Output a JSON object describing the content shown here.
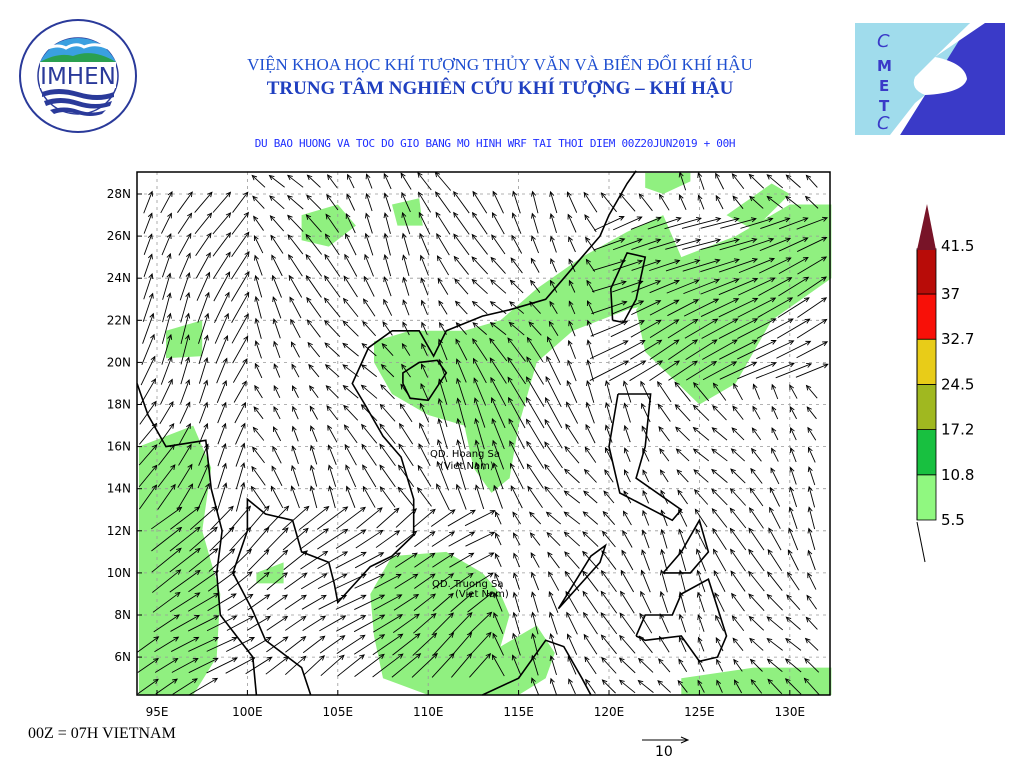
{
  "header": {
    "title_line1": "VIỆN KHOA HỌC KHÍ TƯỢNG THỦY VĂN VÀ BIẾN ĐỔI KHÍ HẬU",
    "title_line2": "TRUNG TÂM NGHIÊN CỨU KHÍ TƯỢNG – KHÍ HẬU",
    "subtitle": "DU BAO HUONG VA TOC DO GIO BANG MO HINH WRF TAI THOI DIEM  00Z20JUN2019 + 00H"
  },
  "logos": {
    "left": {
      "name": "IMHEN",
      "ring_top": "VIEN KHOA HOC",
      "ring_bottom": "KHI TUONG THUY VAN VA BIEN DOI KHI HAU"
    },
    "right": {
      "letters": [
        "C",
        "M",
        "E",
        "T",
        "C"
      ]
    }
  },
  "map": {
    "lon_ticks": [
      "95E",
      "100E",
      "105E",
      "110E",
      "115E",
      "120E",
      "125E",
      "130E"
    ],
    "lat_ticks": [
      "6N",
      "8N",
      "10N",
      "12N",
      "14N",
      "16N",
      "18N",
      "20N",
      "22N",
      "24N",
      "26N",
      "28N"
    ],
    "labels": {
      "hoang_sa_1": "QD. Hoang Sa",
      "hoang_sa_2": "(Viet Nam)",
      "truong_sa_1": "QD. Truong Sa",
      "truong_sa_2": "(Viet Nam)"
    },
    "shading_color": "#90f080"
  },
  "legend": {
    "levels": [
      "5.5",
      "10.8",
      "17.2",
      "24.5",
      "32.7",
      "37",
      "41.5"
    ],
    "colors": [
      "#90f880",
      "#18c040",
      "#a0b820",
      "#e8cc18",
      "#f81008",
      "#b80c08",
      "#781428"
    ]
  },
  "footer": {
    "time_note": "00Z = 07H VIETNAM",
    "reference_vector": "10"
  }
}
